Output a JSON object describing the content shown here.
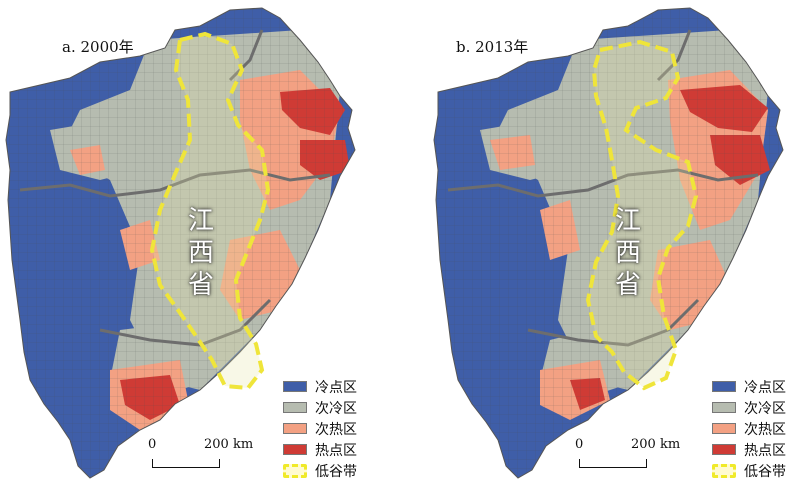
{
  "colors": {
    "cold": "#3f5ea8",
    "subcold": "#b6bcb0",
    "subhot": "#f3a183",
    "hot": "#cf3b35",
    "valley": "#efe53a",
    "border": "#6d6d6d"
  },
  "panels": [
    {
      "title": "a. 2000年",
      "region_label": "江\n西\n省",
      "legend": [
        {
          "label": "冷点区",
          "color": "#3f5ea8"
        },
        {
          "label": "次冷区",
          "color": "#b6bcb0"
        },
        {
          "label": "次热区",
          "color": "#f3a183"
        },
        {
          "label": "热点区",
          "color": "#cf3b35"
        },
        {
          "label": "低谷带",
          "icon": "yellow-dashed-outline-icon"
        }
      ],
      "scale": {
        "zero": "0",
        "distance": "200 km"
      }
    },
    {
      "title": "b. 2013年",
      "region_label": "江\n西\n省",
      "legend": [
        {
          "label": "冷点区",
          "color": "#3f5ea8"
        },
        {
          "label": "次冷区",
          "color": "#b6bcb0"
        },
        {
          "label": "次热区",
          "color": "#f3a183"
        },
        {
          "label": "热点区",
          "color": "#cf3b35"
        },
        {
          "label": "低谷带",
          "icon": "yellow-dashed-outline-icon"
        }
      ],
      "scale": {
        "zero": "0",
        "distance": "200 km"
      }
    }
  ]
}
